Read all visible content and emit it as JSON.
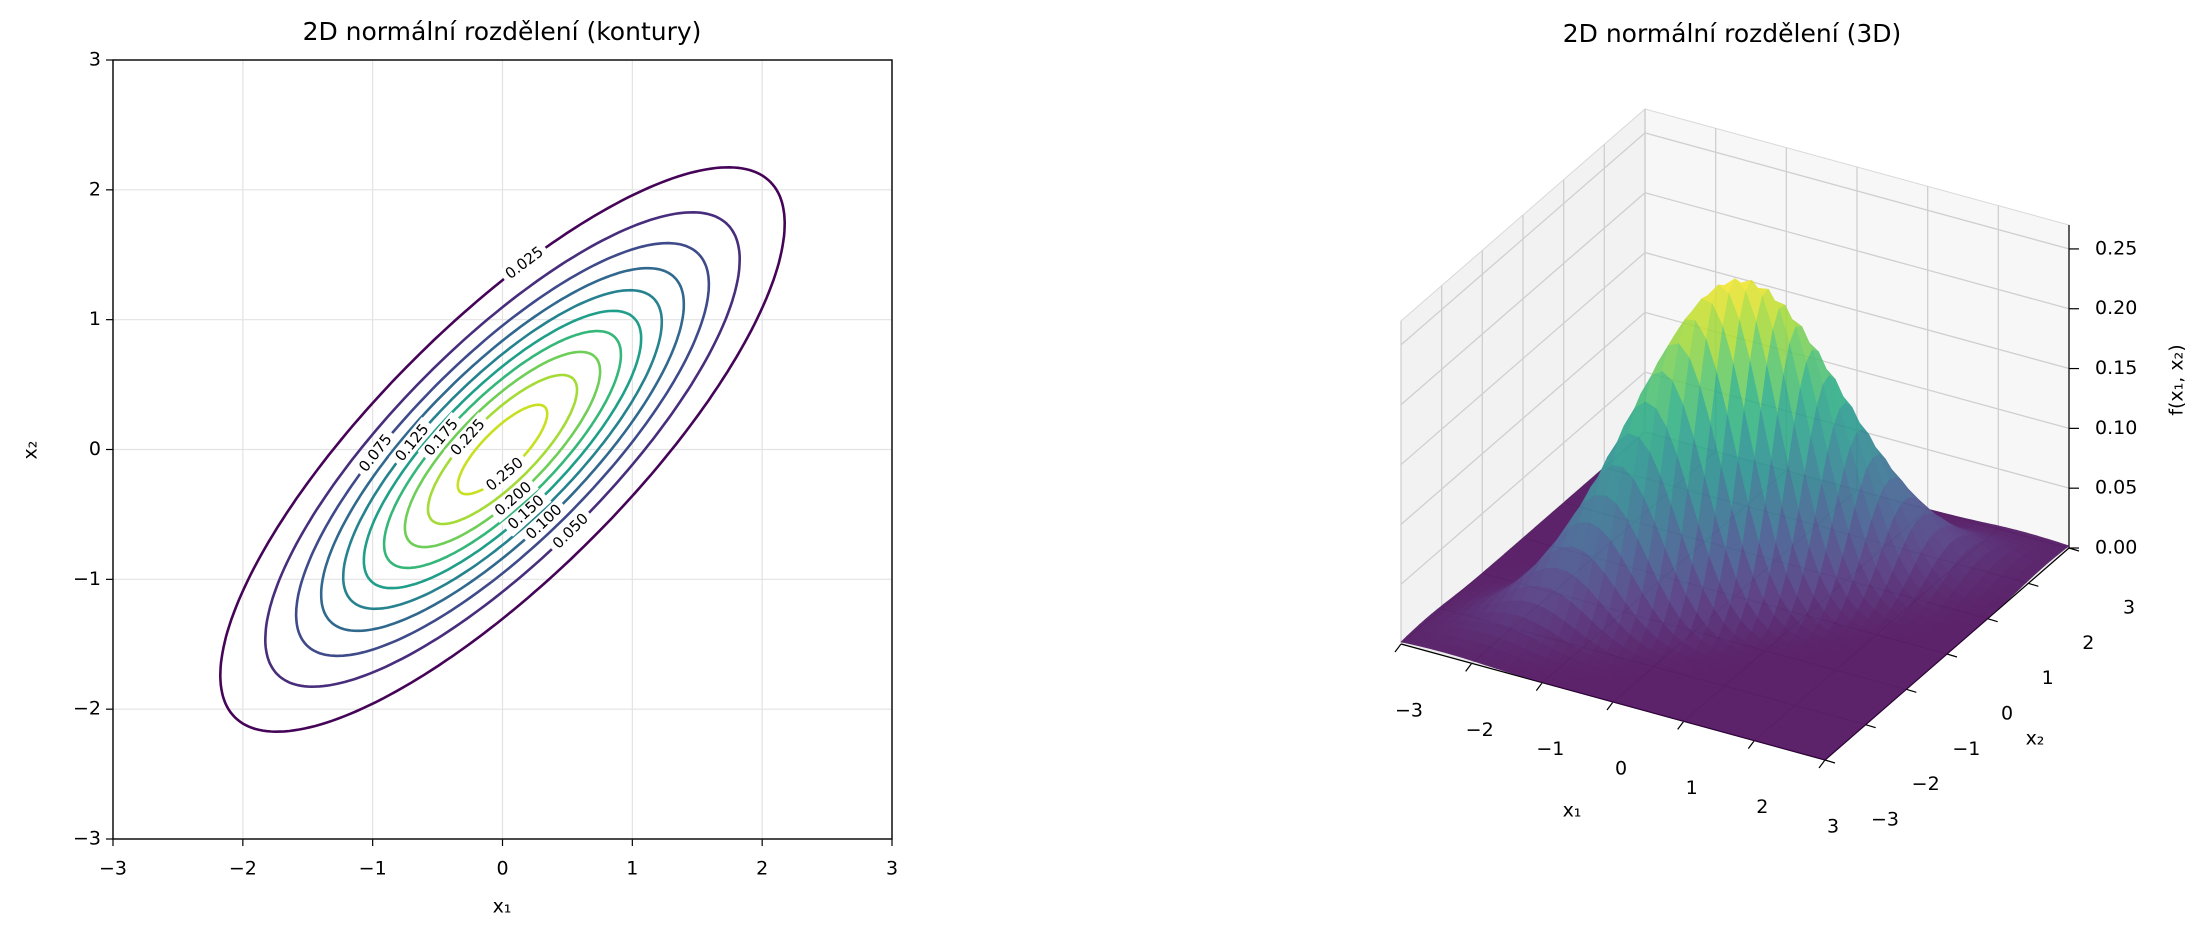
{
  "chart_data": [
    {
      "type": "contour",
      "title": "2D normální rozdělení (kontury)",
      "x_label": "x₁",
      "y_label": "x₂",
      "mean": [
        0,
        0
      ],
      "cov": [
        [
          1,
          0.8
        ],
        [
          0.8,
          1
        ]
      ],
      "levels": [
        {
          "value": 0.025,
          "label": "0.025"
        },
        {
          "value": 0.05,
          "label": "0.050"
        },
        {
          "value": 0.075,
          "label": "0.075"
        },
        {
          "value": 0.1,
          "label": "0.100"
        },
        {
          "value": 0.125,
          "label": "0.125"
        },
        {
          "value": 0.15,
          "label": "0.150"
        },
        {
          "value": 0.175,
          "label": "0.175"
        },
        {
          "value": 0.2,
          "label": "0.200"
        },
        {
          "value": 0.225,
          "label": "0.225"
        },
        {
          "value": 0.25,
          "label": "0.250"
        }
      ],
      "level_colors": [
        "#450457",
        "#472d7b",
        "#3e4a89",
        "#31688e",
        "#26828e",
        "#1f9e89",
        "#35b779",
        "#6ece58",
        "#a5db36",
        "#c8e020"
      ],
      "xlim": [
        -3,
        3
      ],
      "ylim": [
        -3,
        3
      ],
      "xticks": [
        {
          "value": -3,
          "label": "−3"
        },
        {
          "value": -2,
          "label": "−2"
        },
        {
          "value": -1,
          "label": "−1"
        },
        0,
        1,
        2,
        3
      ],
      "yticks": [
        {
          "value": -3,
          "label": "−3"
        },
        {
          "value": -2,
          "label": "−2"
        },
        {
          "value": -1,
          "label": "−1"
        },
        0,
        1,
        2,
        3
      ],
      "grid": true
    },
    {
      "type": "surface3d",
      "title": "2D normální rozdělení (3D)",
      "x_label": "x₁",
      "y_label": "x₂",
      "z_label": "f(x₁, x₂)",
      "mean": [
        0,
        0
      ],
      "cov": [
        [
          1,
          0.8
        ],
        [
          0.8,
          1
        ]
      ],
      "xlim": [
        -3,
        3
      ],
      "ylim": [
        -3,
        3
      ],
      "zlim": [
        0,
        0.27
      ],
      "xticks": [
        {
          "value": -3,
          "label": "−3"
        },
        {
          "value": -2,
          "label": "−2"
        },
        {
          "value": -1,
          "label": "−1"
        },
        0,
        1,
        2,
        3
      ],
      "yticks": [
        {
          "value": -3,
          "label": "−3"
        },
        {
          "value": -2,
          "label": "−2"
        },
        {
          "value": -1,
          "label": "−1"
        },
        0,
        1,
        2,
        3
      ],
      "zticks": [
        {
          "value": 0,
          "label": "0.00"
        },
        {
          "value": 0.05,
          "label": "0.05"
        },
        {
          "value": 0.1,
          "label": "0.10"
        },
        {
          "value": 0.15,
          "label": "0.15"
        },
        {
          "value": 0.2,
          "label": "0.20"
        },
        {
          "value": 0.25,
          "label": "0.25"
        }
      ],
      "colormap": [
        "#440154",
        "#472d7b",
        "#3b528b",
        "#2c728e",
        "#21918c",
        "#28ae80",
        "#5ec962",
        "#addc30",
        "#fde725"
      ],
      "alpha": 0.85,
      "grid": true
    }
  ]
}
